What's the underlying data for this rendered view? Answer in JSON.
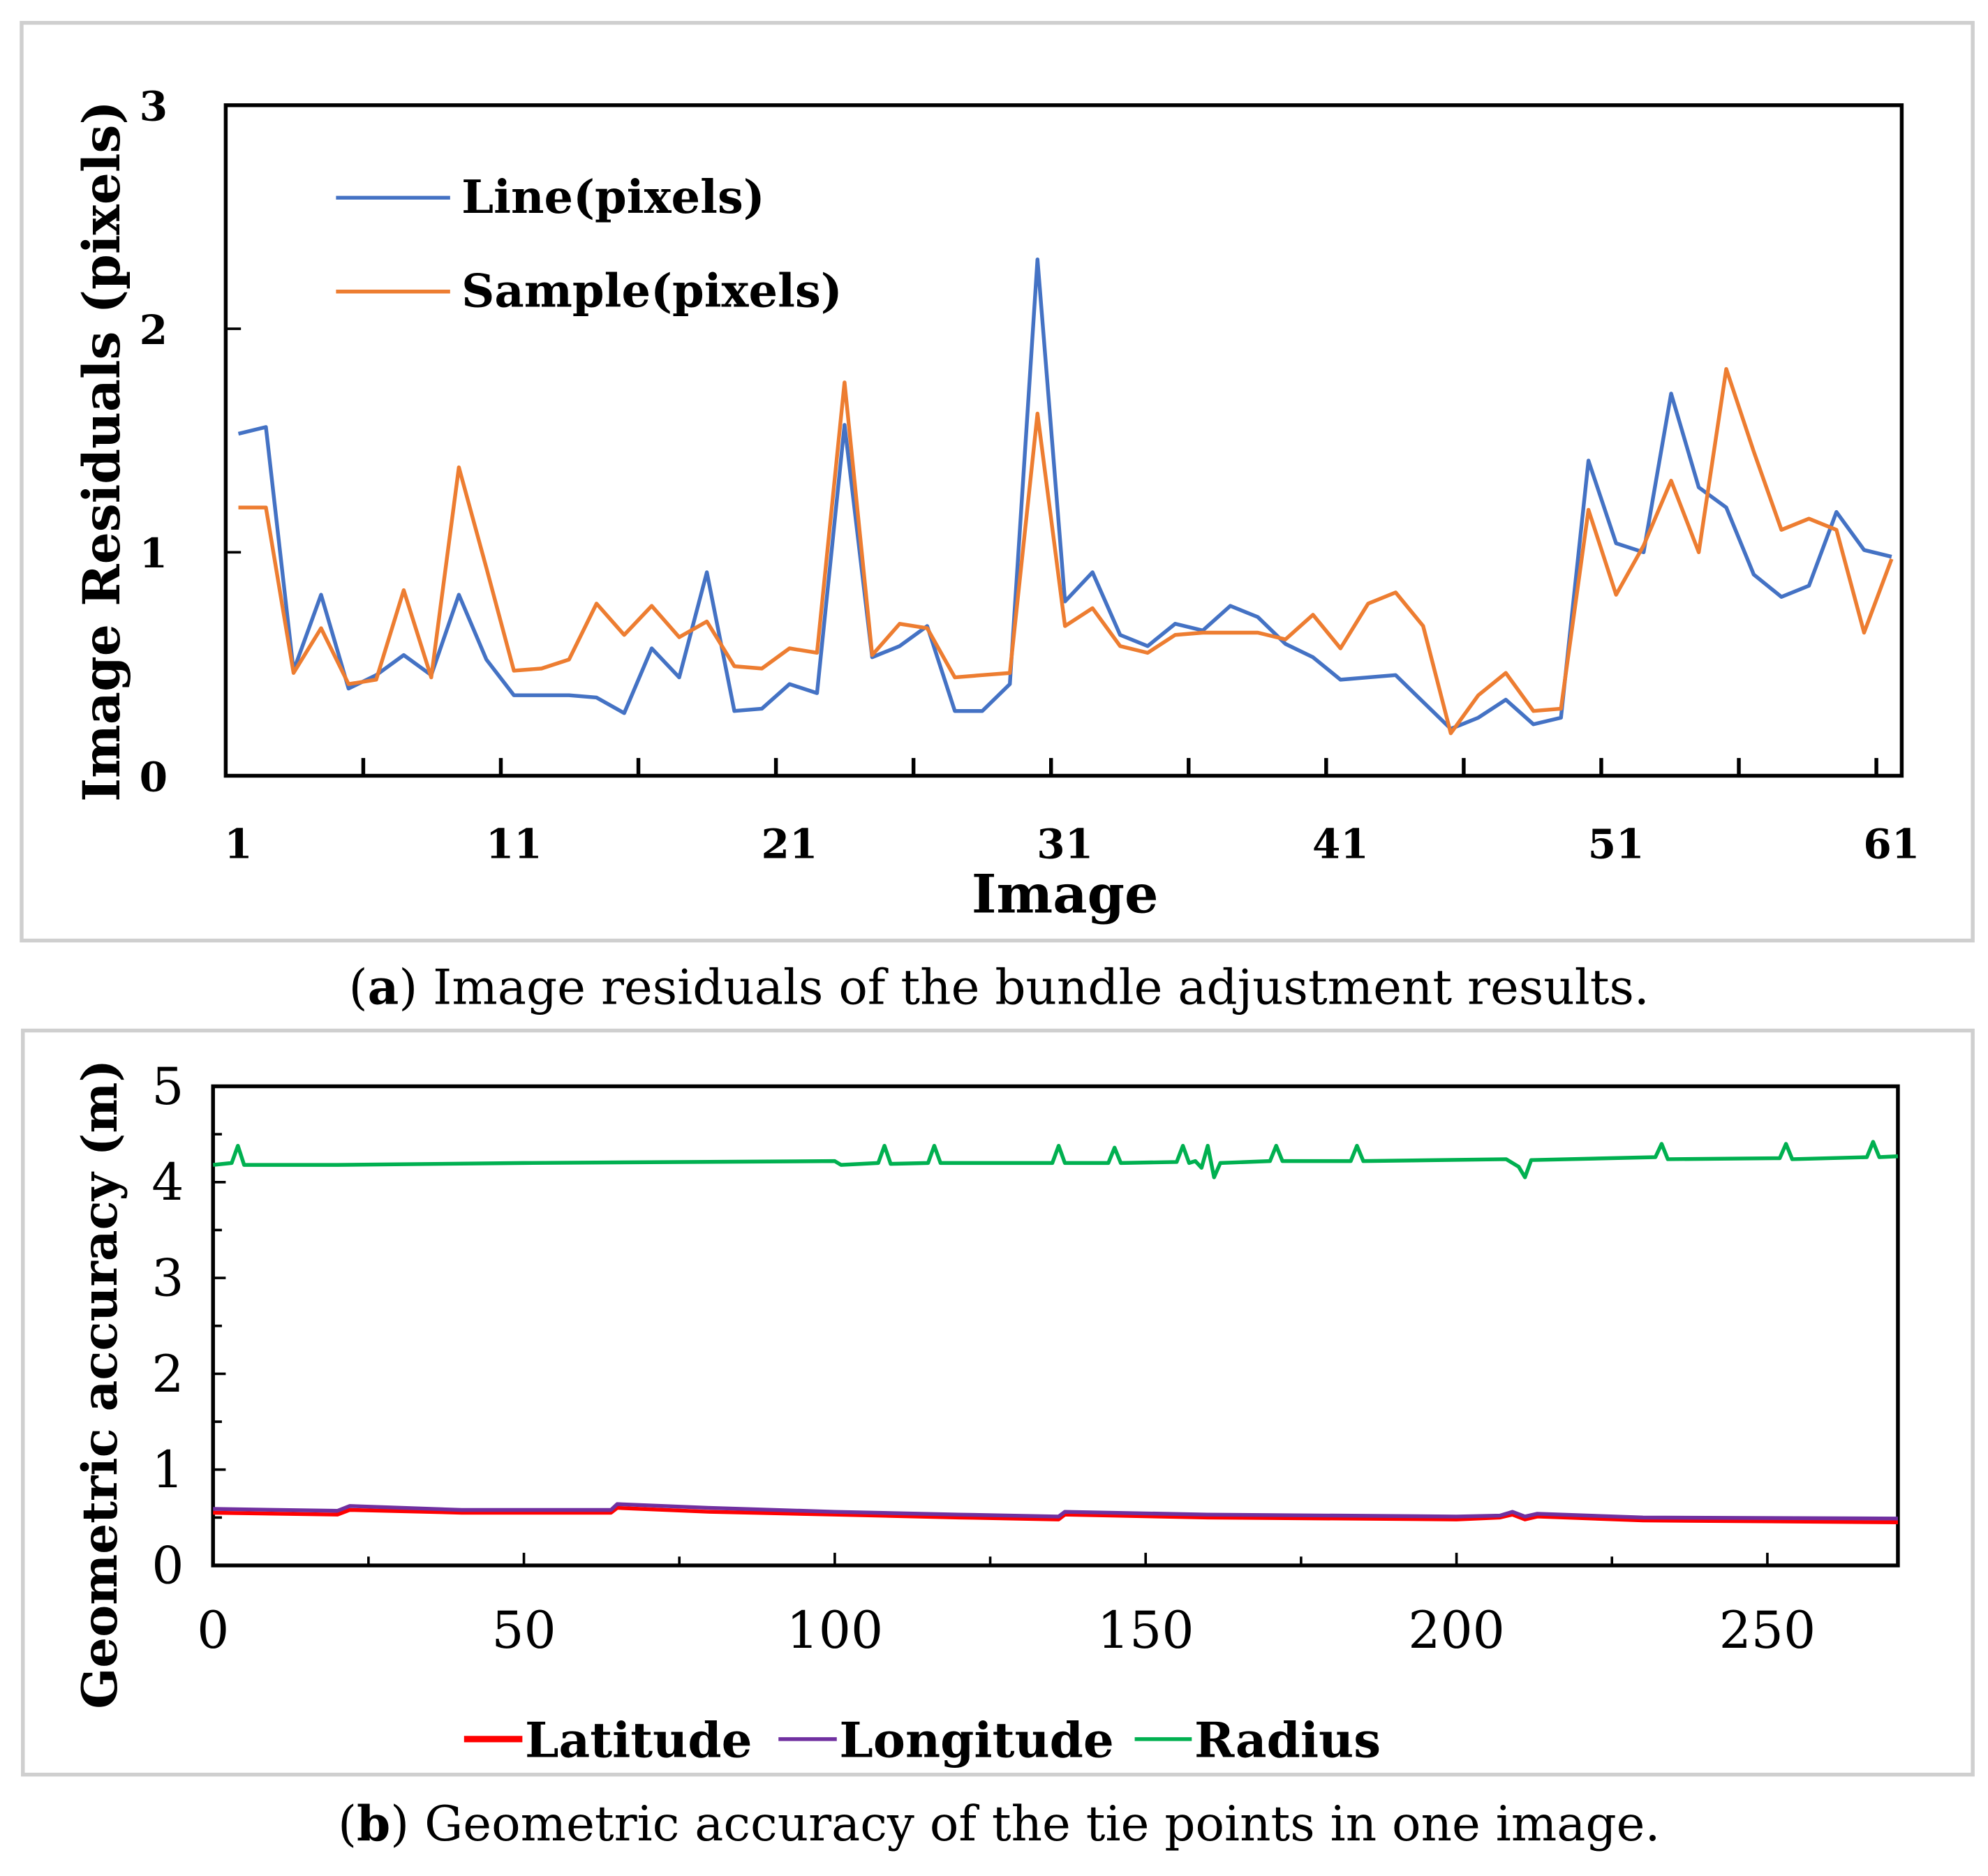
{
  "chart_data": [
    {
      "type": "line",
      "panel_label": "a",
      "caption": "Image residuals of the bundle adjustment results.",
      "xlabel": "Image",
      "ylabel": "Image Residuals (pixels)",
      "xlim": [
        1,
        61
      ],
      "ylim": [
        0,
        3
      ],
      "xticklabels": [
        "1",
        "11",
        "21",
        "31",
        "41",
        "51",
        "61"
      ],
      "xtickvalues": [
        1,
        11,
        21,
        31,
        41,
        51,
        61
      ],
      "yticklabels": [
        "0",
        "1",
        "2",
        "3"
      ],
      "ytickvalues": [
        0,
        1,
        2,
        3
      ],
      "legend_placement": "top-left",
      "grid": false,
      "series": [
        {
          "name": "Line(pixels)",
          "color": "#4472C4",
          "values": [
            1.53,
            1.56,
            0.47,
            0.81,
            0.39,
            0.45,
            0.54,
            0.45,
            0.81,
            0.52,
            0.36,
            0.36,
            0.36,
            0.35,
            0.28,
            0.57,
            0.44,
            0.91,
            0.29,
            0.3,
            0.41,
            0.37,
            1.57,
            0.53,
            0.58,
            0.67,
            0.29,
            0.29,
            0.41,
            2.31,
            0.78,
            0.91,
            0.63,
            0.58,
            0.68,
            0.65,
            0.76,
            0.71,
            0.59,
            0.53,
            0.43,
            0.44,
            0.45,
            0.33,
            0.21,
            0.26,
            0.34,
            0.23,
            0.26,
            1.41,
            1.04,
            1.0,
            1.71,
            1.29,
            1.2,
            0.9,
            0.8,
            0.85,
            1.18,
            1.01,
            0.98
          ]
        },
        {
          "name": "Sample(pixels)",
          "color": "#ED7D31",
          "values": [
            1.2,
            1.2,
            0.46,
            0.66,
            0.41,
            0.43,
            0.83,
            0.44,
            1.38,
            0.93,
            0.47,
            0.48,
            0.52,
            0.77,
            0.63,
            0.76,
            0.62,
            0.69,
            0.49,
            0.48,
            0.57,
            0.55,
            1.76,
            0.54,
            0.68,
            0.66,
            0.44,
            0.45,
            0.46,
            1.62,
            0.67,
            0.75,
            0.58,
            0.55,
            0.63,
            0.64,
            0.64,
            0.64,
            0.61,
            0.72,
            0.57,
            0.77,
            0.82,
            0.67,
            0.19,
            0.36,
            0.46,
            0.29,
            0.3,
            1.19,
            0.81,
            1.03,
            1.32,
            1.0,
            1.82,
            1.45,
            1.1,
            1.15,
            1.1,
            0.64,
            0.97
          ]
        }
      ]
    },
    {
      "type": "line",
      "panel_label": "b",
      "caption": "Geometric accuracy of the tie points in one image.",
      "xlabel": "",
      "ylabel": "Geometric accuracy (m)",
      "xlim": [
        0,
        271
      ],
      "ylim": [
        0,
        5
      ],
      "xticklabels": [
        "0",
        "50",
        "100",
        "150",
        "200",
        "250"
      ],
      "xtickvalues": [
        0,
        50,
        100,
        150,
        200,
        250
      ],
      "yticklabels": [
        "0",
        "1",
        "2",
        "3",
        "4",
        "5"
      ],
      "ytickvalues": [
        0,
        1,
        2,
        3,
        4,
        5
      ],
      "legend_placement": "bottom",
      "grid": false,
      "series": [
        {
          "name": "Latitude",
          "color": "#FF0000",
          "points": [
            [
              0,
              0.55
            ],
            [
              20,
              0.53
            ],
            [
              22,
              0.58
            ],
            [
              40,
              0.55
            ],
            [
              64,
              0.55
            ],
            [
              65,
              0.6
            ],
            [
              80,
              0.56
            ],
            [
              100,
              0.53
            ],
            [
              120,
              0.5
            ],
            [
              136,
              0.48
            ],
            [
              137,
              0.53
            ],
            [
              160,
              0.5
            ],
            [
              200,
              0.48
            ],
            [
              207,
              0.5
            ],
            [
              209,
              0.53
            ],
            [
              211,
              0.48
            ],
            [
              213,
              0.51
            ],
            [
              230,
              0.47
            ],
            [
              271,
              0.45
            ]
          ]
        },
        {
          "name": "Longitude",
          "color": "#7030A0",
          "points": [
            [
              0,
              0.59
            ],
            [
              20,
              0.57
            ],
            [
              22,
              0.62
            ],
            [
              40,
              0.58
            ],
            [
              64,
              0.58
            ],
            [
              65,
              0.64
            ],
            [
              80,
              0.6
            ],
            [
              100,
              0.56
            ],
            [
              120,
              0.53
            ],
            [
              136,
              0.51
            ],
            [
              137,
              0.56
            ],
            [
              160,
              0.53
            ],
            [
              200,
              0.51
            ],
            [
              207,
              0.52
            ],
            [
              209,
              0.56
            ],
            [
              211,
              0.51
            ],
            [
              213,
              0.54
            ],
            [
              230,
              0.5
            ],
            [
              271,
              0.49
            ]
          ]
        },
        {
          "name": "Radius",
          "color": "#00B050",
          "points": [
            [
              0,
              4.18
            ],
            [
              3,
              4.2
            ],
            [
              4,
              4.38
            ],
            [
              5,
              4.18
            ],
            [
              20,
              4.18
            ],
            [
              50,
              4.2
            ],
            [
              100,
              4.22
            ],
            [
              101,
              4.18
            ],
            [
              107,
              4.2
            ],
            [
              108,
              4.38
            ],
            [
              109,
              4.19
            ],
            [
              115,
              4.2
            ],
            [
              116,
              4.38
            ],
            [
              117,
              4.2
            ],
            [
              135,
              4.2
            ],
            [
              136,
              4.38
            ],
            [
              137,
              4.2
            ],
            [
              144,
              4.2
            ],
            [
              145,
              4.36
            ],
            [
              146,
              4.2
            ],
            [
              155,
              4.21
            ],
            [
              156,
              4.38
            ],
            [
              157,
              4.2
            ],
            [
              158,
              4.22
            ],
            [
              159,
              4.15
            ],
            [
              160,
              4.38
            ],
            [
              161,
              4.05
            ],
            [
              162,
              4.2
            ],
            [
              170,
              4.22
            ],
            [
              171,
              4.38
            ],
            [
              172,
              4.22
            ],
            [
              183,
              4.22
            ],
            [
              184,
              4.38
            ],
            [
              185,
              4.22
            ],
            [
              208,
              4.24
            ],
            [
              210,
              4.16
            ],
            [
              211,
              4.05
            ],
            [
              212,
              4.23
            ],
            [
              232,
              4.26
            ],
            [
              233,
              4.4
            ],
            [
              234,
              4.24
            ],
            [
              252,
              4.25
            ],
            [
              253,
              4.4
            ],
            [
              254,
              4.24
            ],
            [
              266,
              4.26
            ],
            [
              267,
              4.42
            ],
            [
              268,
              4.26
            ],
            [
              271,
              4.27
            ]
          ]
        }
      ]
    }
  ]
}
